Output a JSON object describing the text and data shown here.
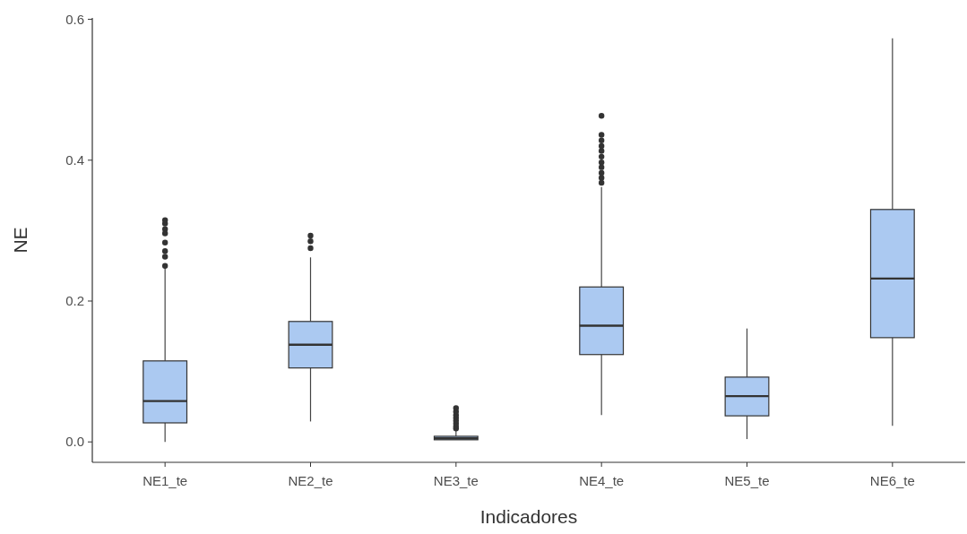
{
  "chart_data": {
    "type": "box",
    "xlabel": "Indicadores",
    "ylabel": "NE",
    "categories": [
      "NE1_te",
      "NE2_te",
      "NE3_te",
      "NE4_te",
      "NE5_te",
      "NE6_te"
    ],
    "color": "#abc9f1",
    "ylim": [
      -0.029,
      0.602
    ],
    "yticks": [
      {
        "value": 0,
        "label": "0.0"
      },
      0.2,
      0.4,
      0.6
    ],
    "grid": false,
    "boxes": [
      {
        "low": 0.0,
        "q1": 0.027,
        "median": 0.058,
        "q3": 0.115,
        "high": 0.247,
        "outliers": [
          0.25,
          0.263,
          0.271,
          0.283,
          0.296,
          0.302,
          0.31,
          0.315
        ]
      },
      {
        "low": 0.029,
        "q1": 0.105,
        "median": 0.138,
        "q3": 0.171,
        "high": 0.262,
        "outliers": [
          0.275,
          0.285,
          0.293
        ]
      },
      {
        "low": 0.003,
        "q1": 0.003,
        "median": 0.005,
        "q3": 0.008,
        "high": 0.016,
        "outliers": [
          0.019,
          0.022,
          0.026,
          0.03,
          0.034,
          0.038,
          0.043,
          0.048
        ]
      },
      {
        "low": 0.038,
        "q1": 0.124,
        "median": 0.165,
        "q3": 0.22,
        "high": 0.362,
        "outliers": [
          0.368,
          0.375,
          0.382,
          0.39,
          0.397,
          0.405,
          0.413,
          0.42,
          0.428,
          0.436,
          0.463
        ]
      },
      {
        "low": 0.004,
        "q1": 0.037,
        "median": 0.065,
        "q3": 0.092,
        "high": 0.161
      },
      {
        "low": 0.023,
        "q1": 0.148,
        "median": 0.232,
        "q3": 0.33,
        "high": 0.573
      }
    ]
  }
}
